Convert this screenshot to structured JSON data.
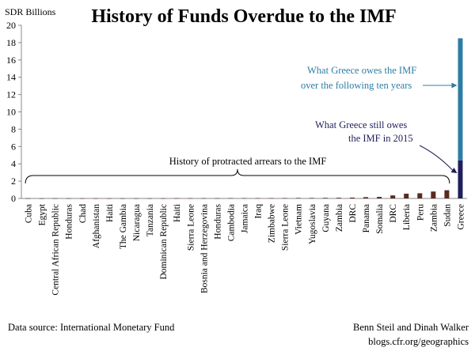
{
  "chart_data": {
    "type": "bar",
    "title": "History of Funds Overdue to the IMF",
    "ylabel": "SDR Billions",
    "xlabel": "",
    "ylim": [
      0,
      20
    ],
    "yticks": [
      0,
      2,
      4,
      6,
      8,
      10,
      12,
      14,
      16,
      18,
      20
    ],
    "grid": false,
    "categories": [
      "Cuba",
      "Egypt",
      "Central African Republic",
      "Honduras",
      "Chad",
      "Afghanistan",
      "Haiti",
      "The Gambia",
      "Nicaragua",
      "Tanzania",
      "Dominican Republic",
      "Haiti",
      "Sierra Leone",
      "Bosnia and Herzegovina",
      "Honduras",
      "Cambodia",
      "Jamaica",
      "Iraq",
      "Zimbabwe",
      "Sierra Leone",
      "Vietnam",
      "Yugoslavia",
      "Guyana",
      "Zambia",
      "DRC",
      "Panama",
      "Somalia",
      "DRC",
      "Liberia",
      "Peru",
      "Zambia",
      "Sudan",
      "Greece"
    ],
    "series": [
      {
        "color": "#1f1f5a",
        "values": [
          0.01,
          0.01,
          0.02,
          0.02,
          0.02,
          0.02,
          0.02,
          0.02,
          0.02,
          0.02,
          0.02,
          0.03,
          0.03,
          0.03,
          0.03,
          0.04,
          0.04,
          0.04,
          0.04,
          0.05,
          0.06,
          0.06,
          0.07,
          0.08,
          0.1,
          0.15,
          0.18,
          0.35,
          0.55,
          0.6,
          0.8,
          0.95,
          4.4
        ]
      },
      {
        "color": "#2e7ca3",
        "values": [
          0,
          0,
          0,
          0,
          0,
          0,
          0,
          0,
          0,
          0,
          0,
          0,
          0,
          0,
          0,
          0,
          0,
          0,
          0,
          0,
          0,
          0,
          0,
          0,
          0,
          0,
          0,
          0,
          0,
          0,
          0,
          0,
          14.1
        ]
      }
    ],
    "bar_color_small": "#5a2a1e",
    "annotations": {
      "greece_future": [
        "What Greece owes the IMF",
        "over the following  ten years"
      ],
      "greece_2015": [
        "What Greece still owes",
        "the IMF in 2015"
      ],
      "history": "History  of protracted  arrears to the IMF"
    },
    "annotation_colors": {
      "greece_future": "#2e7ca3",
      "greece_2015": "#1f1f5a",
      "history": "#000000"
    }
  },
  "footer": {
    "source": "Data source: International  Monetary  Fund",
    "authors": "Benn Steil and Dinah Walker",
    "url": "blogs.cfr.org/geographics"
  }
}
